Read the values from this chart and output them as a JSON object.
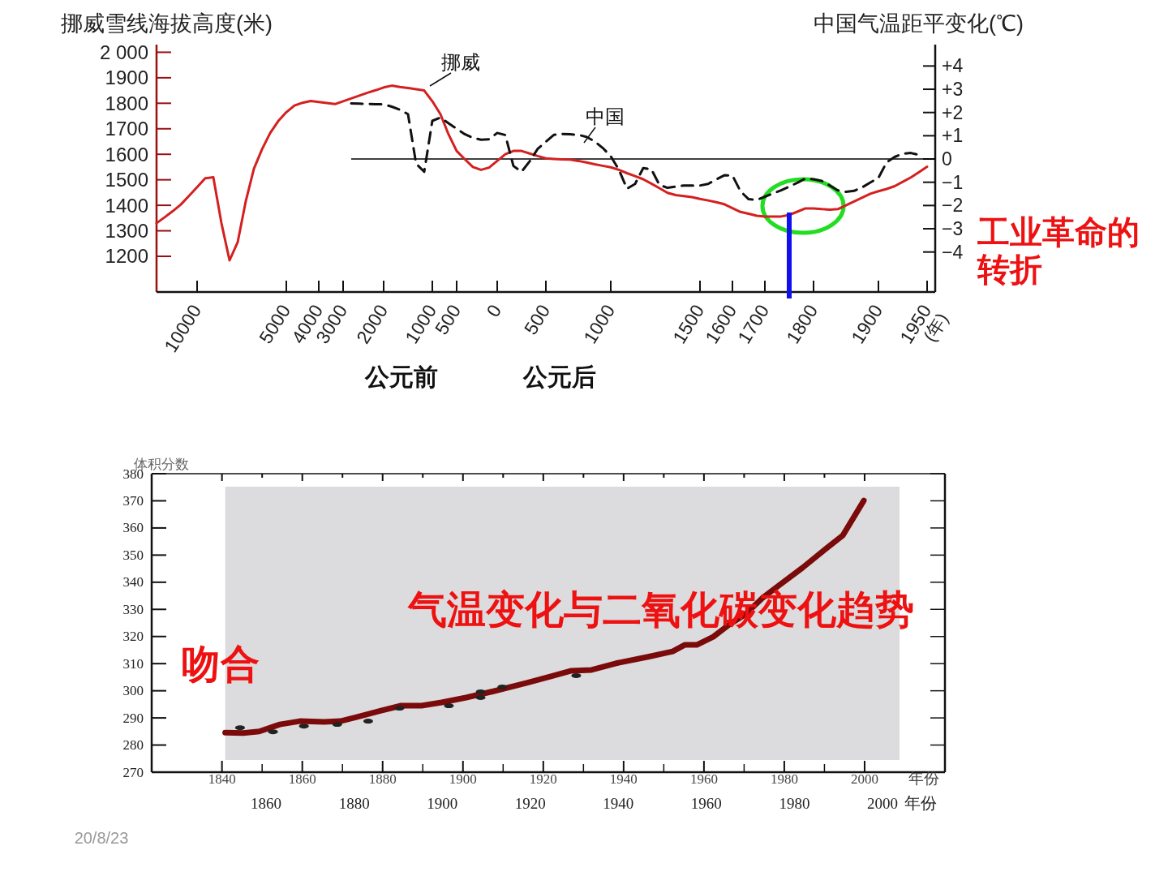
{
  "chart_data": [
    {
      "type": "line",
      "ylabel": "挪威雪线海拔高度(米)",
      "y2label": "中国气温距平变化(℃)",
      "xlabel": "(年)",
      "categories": [
        null,
        null,
        null,
        null,
        null,
        "10000",
        null,
        null,
        null,
        null,
        null,
        null,
        null,
        null,
        null,
        null,
        "5000",
        null,
        null,
        null,
        "4000",
        null,
        null,
        "3000",
        null,
        null,
        null,
        null,
        "2000",
        null,
        null,
        null,
        null,
        null,
        "1000",
        null,
        null,
        "500",
        null,
        null,
        null,
        null,
        "0",
        null,
        null,
        null,
        null,
        null,
        "500",
        null,
        null,
        null,
        null,
        null,
        null,
        null,
        "1000",
        null,
        null,
        null,
        null,
        null,
        null,
        null,
        null,
        null,
        null,
        "1500",
        null,
        null,
        null,
        "1600",
        null,
        null,
        null,
        "1700",
        null,
        null,
        null,
        null,
        null,
        "1800",
        null,
        null,
        null,
        null,
        null,
        null,
        null,
        "1900",
        null,
        null,
        null,
        null,
        null,
        "1950",
        null
      ],
      "ylim": [
        1060,
        2030
      ],
      "yticks": [
        1200,
        1300,
        1400,
        1500,
        1600,
        1700,
        1800,
        1900,
        {
          "value": 2000,
          "label": "2 000"
        }
      ],
      "y2lim": [
        -5.72,
        4.92
      ],
      "y2ticks": [
        {
          "value": 4,
          "label": "+4"
        },
        {
          "value": 3,
          "label": "+3"
        },
        {
          "value": 2,
          "label": "+2"
        },
        {
          "value": 1,
          "label": "+1"
        },
        0,
        {
          "value": -1,
          "label": "−1"
        },
        {
          "value": -2,
          "label": "−2"
        },
        {
          "value": -3,
          "label": "−3"
        },
        {
          "value": -4,
          "label": "−4"
        }
      ],
      "series": [
        {
          "name": "挪威",
          "color": "#d42020",
          "values": [
            1330,
            1353,
            1377,
            1403,
            1437,
            1471,
            1506,
            1510,
            1330,
            1184,
            1255,
            1416,
            1543,
            1619,
            1683,
            1730,
            1765,
            1791,
            1802,
            1809,
            1805,
            1801,
            1797,
            1808,
            1819,
            1830,
            1841,
            1851,
            1862,
            1869,
            1864,
            1860,
            1855,
            1850,
            1808,
            1757,
            1678,
            1613,
            1581,
            1550,
            1539,
            1548,
            1574,
            1600,
            1613,
            1613,
            1603,
            1593,
            1584,
            1582,
            1580,
            1579,
            1574,
            1568,
            1561,
            1555,
            1549,
            1539,
            1526,
            1514,
            1502,
            1485,
            1467,
            1449,
            1440,
            1436,
            1432,
            1425,
            1419,
            1412,
            1404,
            1389,
            1374,
            1367,
            1359,
            1356,
            1356,
            1356,
            1362,
            1375,
            1388,
            1388,
            1385,
            1383,
            1385,
            1400,
            1415,
            1430,
            1445,
            1455,
            1464,
            1475,
            1492,
            1509,
            1530,
            1551,
            null
          ]
        },
        {
          "name": "中国",
          "color": "#111111",
          "axis": "y2",
          "line_style": "dashed",
          "values": [
            null,
            null,
            null,
            null,
            null,
            null,
            null,
            null,
            null,
            null,
            null,
            null,
            null,
            null,
            null,
            null,
            null,
            null,
            null,
            null,
            null,
            null,
            null,
            null,
            2.39,
            2.38,
            2.37,
            2.36,
            2.35,
            2.25,
            2.12,
            1.93,
            -0.2,
            -0.55,
            1.64,
            1.78,
            1.54,
            1.3,
            1.07,
            0.91,
            0.83,
            0.85,
            1.12,
            1.03,
            -0.3,
            -0.55,
            -0.1,
            0.44,
            0.74,
            1.04,
            1.08,
            1.06,
            1.04,
            0.95,
            0.76,
            0.48,
            0.12,
            -0.46,
            -1.28,
            -1.07,
            -0.39,
            -0.44,
            -1.11,
            -1.24,
            -1.19,
            -1.14,
            -1.14,
            -1.14,
            -1.07,
            -0.88,
            -0.7,
            -0.71,
            -1.39,
            -1.73,
            -1.76,
            -1.62,
            -1.48,
            -1.35,
            -1.19,
            -1.02,
            -0.84,
            -0.87,
            -0.94,
            -1.14,
            -1.35,
            -1.41,
            -1.37,
            -1.22,
            -1.01,
            -0.81,
            -0.15,
            0.09,
            0.23,
            0.26,
            0.18,
            null,
            null
          ]
        }
      ],
      "ref_lines": [
        {
          "axis": "y2",
          "value": 0,
          "color": "#000000"
        }
      ],
      "annotations": [
        "公元前",
        "公元后",
        "工业革命的转折"
      ]
    },
    {
      "type": "line",
      "ylabel": "体积分数",
      "xlabel": "年份",
      "x2label": "年份",
      "xlim": [
        1822.5,
        2020
      ],
      "xticks": [
        1840,
        1860,
        1880,
        1900,
        1920,
        1940,
        1960,
        1980,
        2000
      ],
      "x2lim": [
        1834,
        2014.2
      ],
      "x2ticks": [
        1860,
        1880,
        1900,
        1920,
        1940,
        1960,
        1980,
        2000
      ],
      "ylim": [
        270,
        380
      ],
      "yticks": [
        270,
        280,
        290,
        300,
        310,
        320,
        330,
        340,
        350,
        360,
        370,
        380
      ],
      "series": [
        {
          "color": "#7b0a0a",
          "x": [
            1840.8,
            1845.3,
            1849.3,
            1854.4,
            1859.4,
            1865.4,
            1869.5,
            1873.5,
            1879.6,
            1884.6,
            1889.7,
            1894.7,
            1900.8,
            1907.8,
            1915.9,
            1921.9,
            1927.0,
            1932.0,
            1938.1,
            1946.1,
            1952.2,
            1955.2,
            1958.2,
            1962.3,
            1966.3,
            1970.4,
            1974.4,
            1978.4,
            1984.5,
            1990.5,
            1994.6,
            1999.8
          ],
          "values": [
            284.6,
            284.4,
            285.0,
            287.6,
            288.8,
            288.5,
            288.8,
            290.3,
            292.7,
            294.5,
            294.5,
            295.7,
            297.5,
            299.9,
            302.9,
            305.3,
            307.4,
            307.7,
            310.1,
            312.5,
            314.5,
            316.9,
            316.9,
            319.9,
            324.4,
            328.3,
            334.0,
            338.5,
            345.3,
            352.5,
            357.3,
            370.1
          ]
        },
        {
          "type": "scatter",
          "color": "#222222",
          "x": [
            1844.5,
            1852.7,
            1860.4,
            1868.7,
            1876.4,
            1884.2,
            1896.5,
            1904.4,
            1904.4,
            1909.8,
            1928.2
          ],
          "values": [
            286.4,
            284.9,
            287.0,
            287.6,
            288.8,
            293.6,
            294.5,
            299.6,
            297.5,
            301.4,
            305.6
          ]
        }
      ],
      "bands": [
        {
          "axis": "x",
          "from": 1840.8,
          "to": 2008.7,
          "color": "#dcdcde"
        }
      ],
      "annotations": [
        "气温变化与二氧化碳变化趋势",
        "吻合",
        "20/8/23"
      ]
    }
  ]
}
